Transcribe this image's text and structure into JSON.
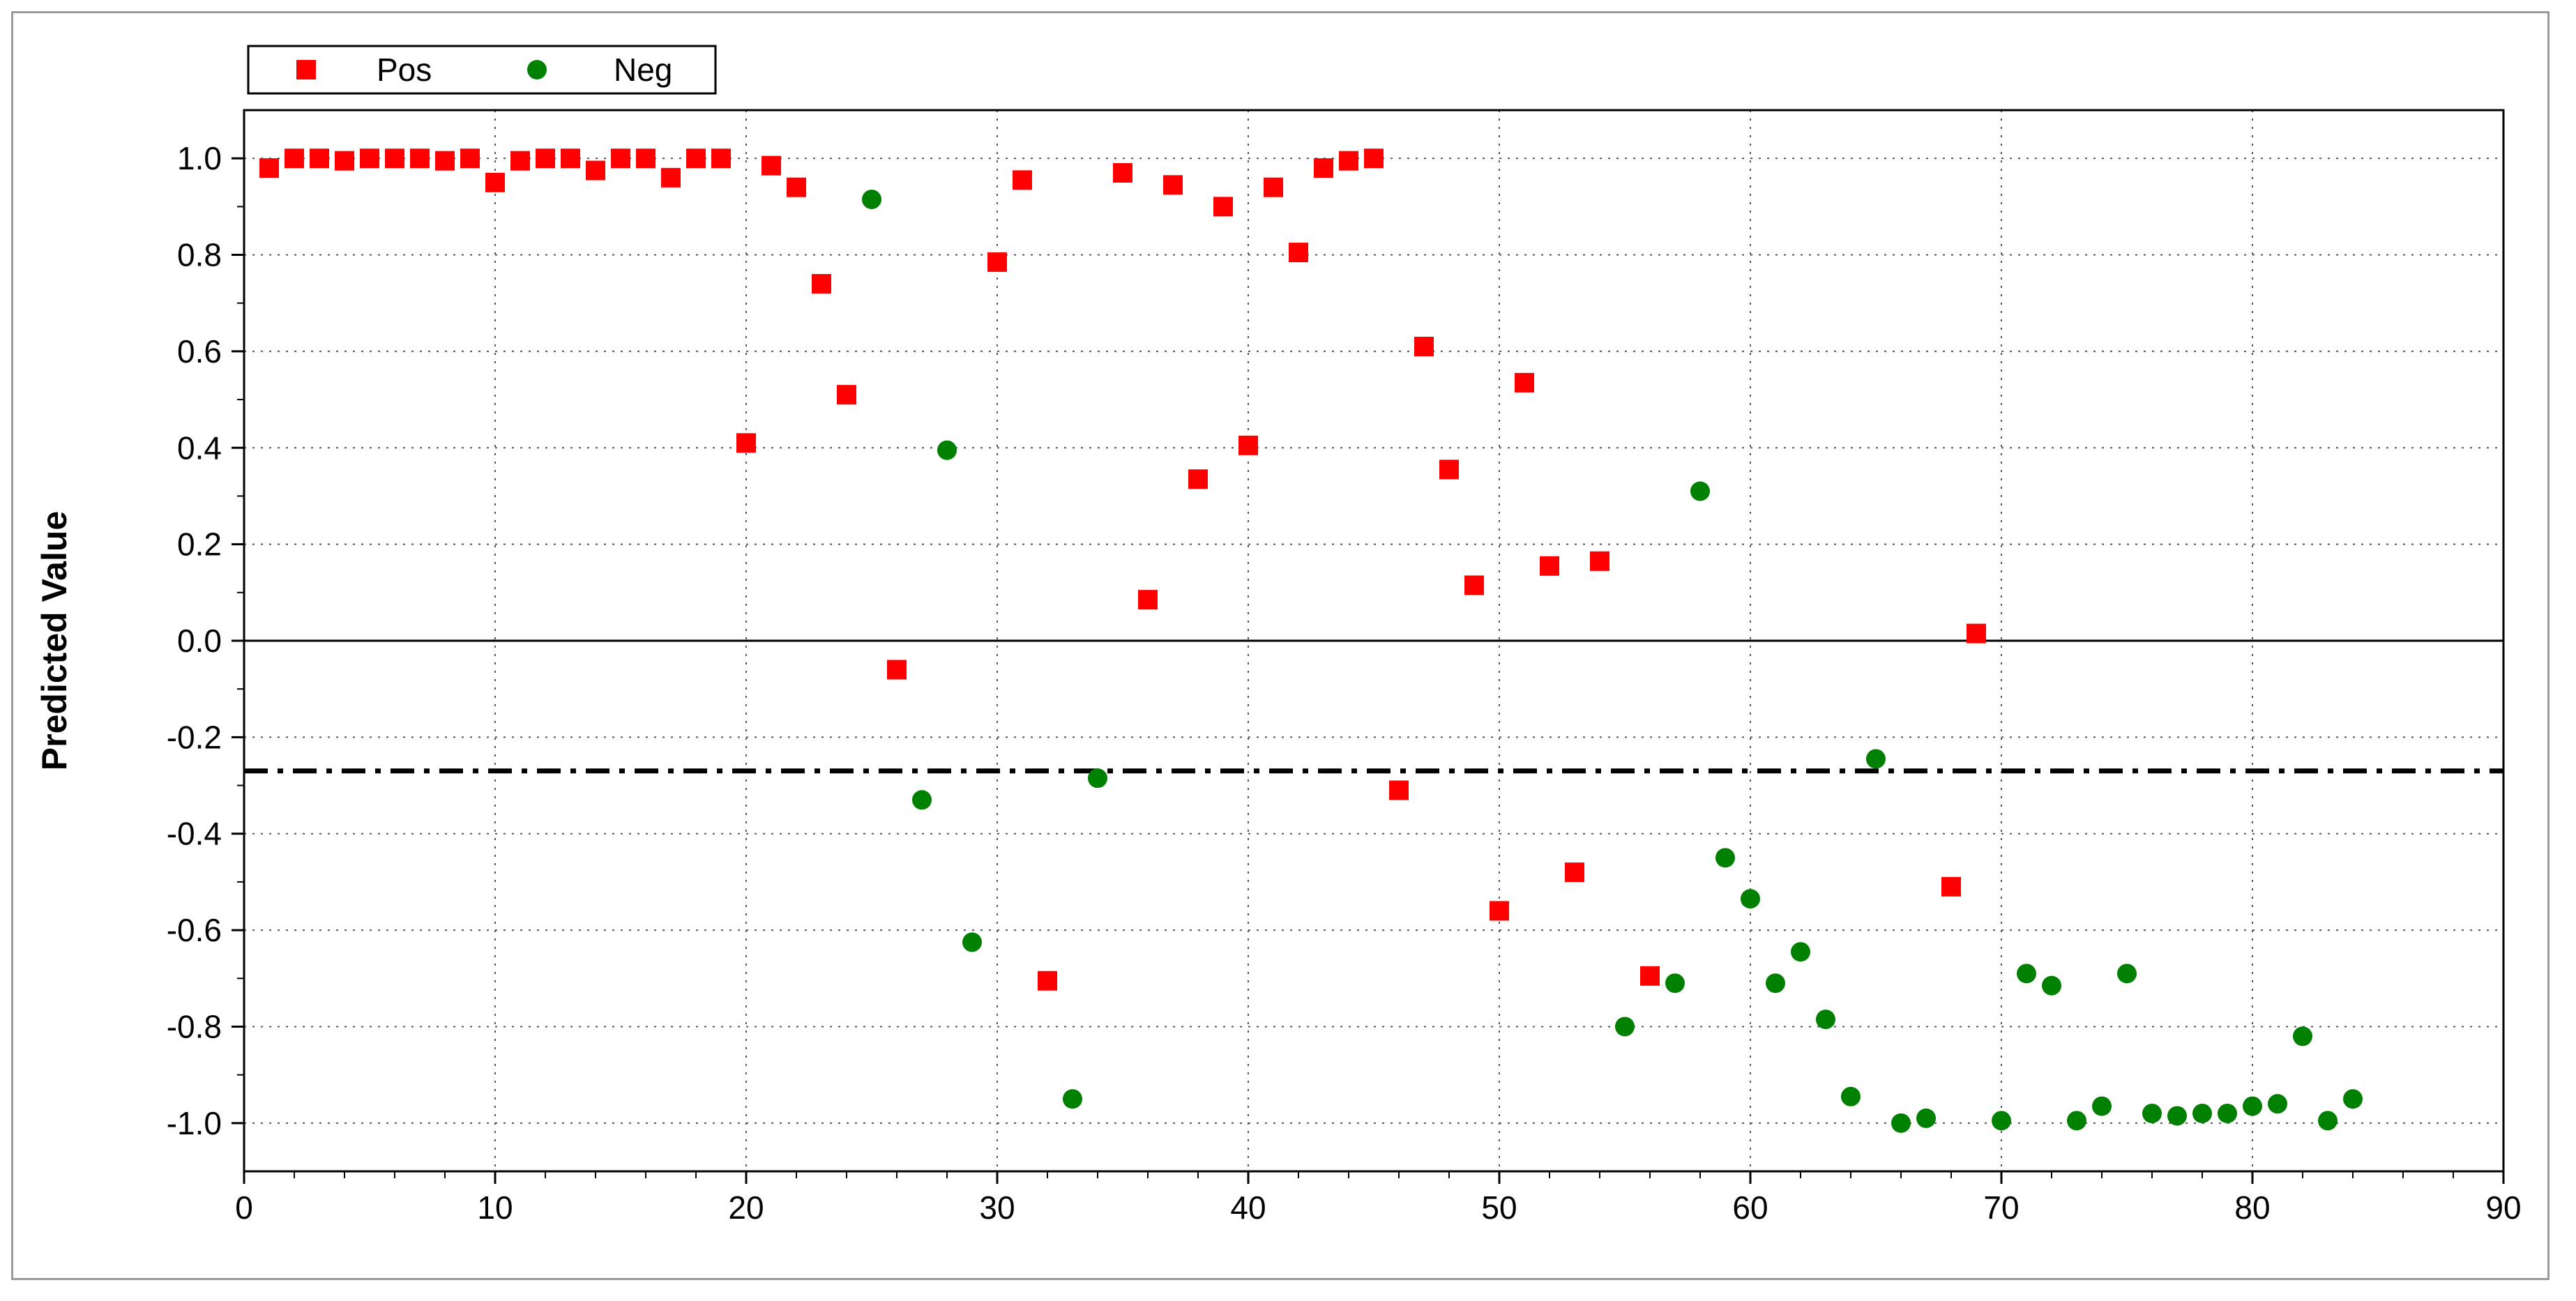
{
  "chart_data": {
    "type": "scatter",
    "title": "",
    "xlabel": "",
    "ylabel": "Predicted Value",
    "xlim": [
      0,
      90
    ],
    "ylim": [
      -1.1,
      1.1
    ],
    "x_ticks": [
      0,
      10,
      20,
      30,
      40,
      50,
      60,
      70,
      80,
      90
    ],
    "y_ticks": [
      1.0,
      0.8,
      0.6,
      0.4,
      0.2,
      0.0,
      -0.2,
      -0.4,
      -0.6,
      -0.8,
      -1.0
    ],
    "y_tick_labels": [
      "1.0",
      "0.8",
      "0.6",
      "0.4",
      "0.2",
      "0.0",
      "-0.2",
      "-0.4",
      "-0.6",
      "-0.8",
      "-1.0"
    ],
    "grid": true,
    "legend_position": "top-left",
    "reference_lines": [
      {
        "y": 0.0,
        "style": "solid"
      },
      {
        "y": -0.27,
        "style": "dash-dot"
      }
    ],
    "series": [
      {
        "name": "Pos",
        "marker": "square",
        "color": "#ff0000",
        "points": [
          [
            1,
            0.98
          ],
          [
            2,
            1.0
          ],
          [
            3,
            1.0
          ],
          [
            4,
            0.995
          ],
          [
            5,
            1.0
          ],
          [
            6,
            1.0
          ],
          [
            7,
            1.0
          ],
          [
            8,
            0.995
          ],
          [
            9,
            1.0
          ],
          [
            10,
            0.95
          ],
          [
            11,
            0.995
          ],
          [
            12,
            1.0
          ],
          [
            13,
            1.0
          ],
          [
            14,
            0.975
          ],
          [
            15,
            1.0
          ],
          [
            16,
            1.0
          ],
          [
            17,
            0.96
          ],
          [
            18,
            1.0
          ],
          [
            19,
            1.0
          ],
          [
            20,
            0.41
          ],
          [
            21,
            0.985
          ],
          [
            22,
            0.94
          ],
          [
            23,
            0.74
          ],
          [
            24,
            0.51
          ],
          [
            26,
            -0.06
          ],
          [
            30,
            0.785
          ],
          [
            31,
            0.955
          ],
          [
            32,
            -0.705
          ],
          [
            35,
            0.97
          ],
          [
            36,
            0.085
          ],
          [
            37,
            0.945
          ],
          [
            38,
            0.335
          ],
          [
            39,
            0.9
          ],
          [
            40,
            0.405
          ],
          [
            41,
            0.94
          ],
          [
            42,
            0.805
          ],
          [
            43,
            0.98
          ],
          [
            44,
            0.995
          ],
          [
            45,
            1.0
          ],
          [
            46,
            -0.31
          ],
          [
            47,
            0.61
          ],
          [
            48,
            0.355
          ],
          [
            49,
            0.115
          ],
          [
            50,
            -0.56
          ],
          [
            51,
            0.535
          ],
          [
            52,
            0.155
          ],
          [
            53,
            -0.48
          ],
          [
            54,
            0.165
          ],
          [
            56,
            -0.695
          ],
          [
            68,
            -0.51
          ],
          [
            69,
            0.015
          ]
        ]
      },
      {
        "name": "Neg",
        "marker": "circle",
        "color": "#008000",
        "points": [
          [
            25,
            0.915
          ],
          [
            27,
            -0.33
          ],
          [
            28,
            0.395
          ],
          [
            29,
            -0.625
          ],
          [
            33,
            -0.95
          ],
          [
            34,
            -0.285
          ],
          [
            55,
            -0.8
          ],
          [
            57,
            -0.71
          ],
          [
            58,
            0.31
          ],
          [
            59,
            -0.45
          ],
          [
            60,
            -0.535
          ],
          [
            61,
            -0.71
          ],
          [
            62,
            -0.645
          ],
          [
            63,
            -0.785
          ],
          [
            64,
            -0.945
          ],
          [
            65,
            -0.245
          ],
          [
            66,
            -1.0
          ],
          [
            67,
            -0.99
          ],
          [
            70,
            -0.995
          ],
          [
            71,
            -0.69
          ],
          [
            72,
            -0.715
          ],
          [
            73,
            -0.995
          ],
          [
            74,
            -0.965
          ],
          [
            75,
            -0.69
          ],
          [
            76,
            -0.98
          ],
          [
            77,
            -0.985
          ],
          [
            78,
            -0.98
          ],
          [
            79,
            -0.98
          ],
          [
            80,
            -0.965
          ],
          [
            81,
            -0.96
          ],
          [
            82,
            -0.82
          ],
          [
            83,
            -0.995
          ],
          [
            84,
            -0.95
          ]
        ]
      }
    ]
  }
}
